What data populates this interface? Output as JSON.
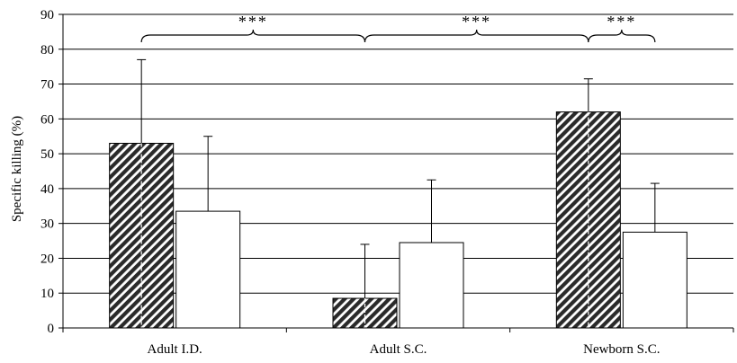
{
  "chart_data": {
    "type": "bar",
    "title": "",
    "xlabel": "",
    "ylabel": "Specific killing (%)",
    "ylim": [
      0,
      90
    ],
    "yticks": [
      0,
      10,
      20,
      30,
      40,
      50,
      60,
      70,
      80,
      90
    ],
    "grid": true,
    "categories": [
      "Adult I.D.",
      "Adult S.C.",
      "Newborn S.C."
    ],
    "series": [
      {
        "fill": "hatched",
        "values": [
          53,
          8.5,
          62
        ],
        "errors": [
          24,
          15.5,
          9.5
        ],
        "color": "#333333"
      },
      {
        "fill": "white",
        "values": [
          33.5,
          24.5,
          27.5
        ],
        "errors": [
          21.5,
          18,
          14
        ],
        "color": "#ffffff"
      }
    ],
    "significance": [
      {
        "from": [
          0,
          0
        ],
        "to": [
          1,
          0
        ],
        "label": "***"
      },
      {
        "from": [
          1,
          0
        ],
        "to": [
          2,
          0
        ],
        "label": "***"
      },
      {
        "from": [
          2,
          0
        ],
        "to": [
          2,
          1
        ],
        "label": "***"
      }
    ]
  }
}
